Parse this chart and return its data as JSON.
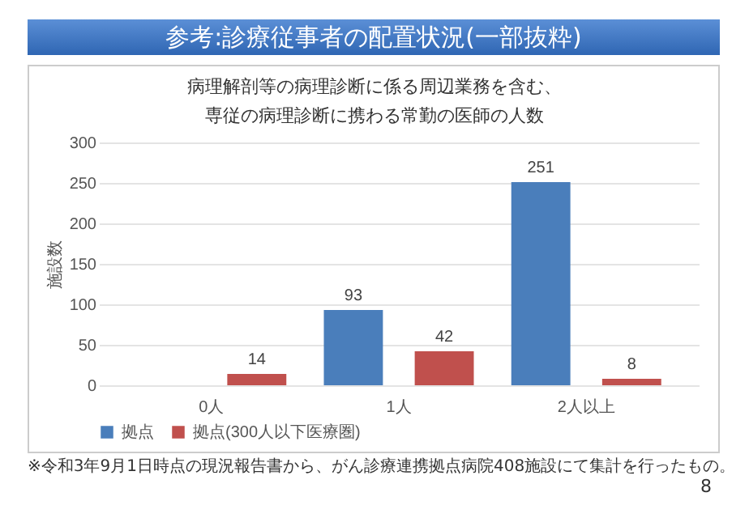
{
  "chart_data": {
    "type": "bar",
    "title": "参考:診療従事者の配置状況(一部抜粋)",
    "subtitle": "病理解剖等の病理診断に係る周辺業務を含む、専従の病理診断に携わる常勤の医師の人数",
    "ylabel": "施設数",
    "categories": [
      "0人",
      "1人",
      "2人以上"
    ],
    "series": [
      {
        "name": "拠点",
        "color": "#4a7ebb",
        "values": [
          0,
          93,
          251
        ],
        "value_labels": [
          null,
          "93",
          "251"
        ]
      },
      {
        "name": "拠点(300人以下医療圏)",
        "color": "#c0504d",
        "values": [
          14,
          42,
          8
        ],
        "value_labels": [
          "14",
          "42",
          "8"
        ]
      }
    ],
    "ylim": [
      0,
      300
    ],
    "yticks": [
      0,
      50,
      100,
      150,
      200,
      250,
      300
    ],
    "grid": "y",
    "legend": "bottom",
    "annotations": [
      "※令和3年9月1日時点の現況報告書から、がん診療連携拠点病院408施設にて集計を行ったもの。",
      "8"
    ]
  }
}
